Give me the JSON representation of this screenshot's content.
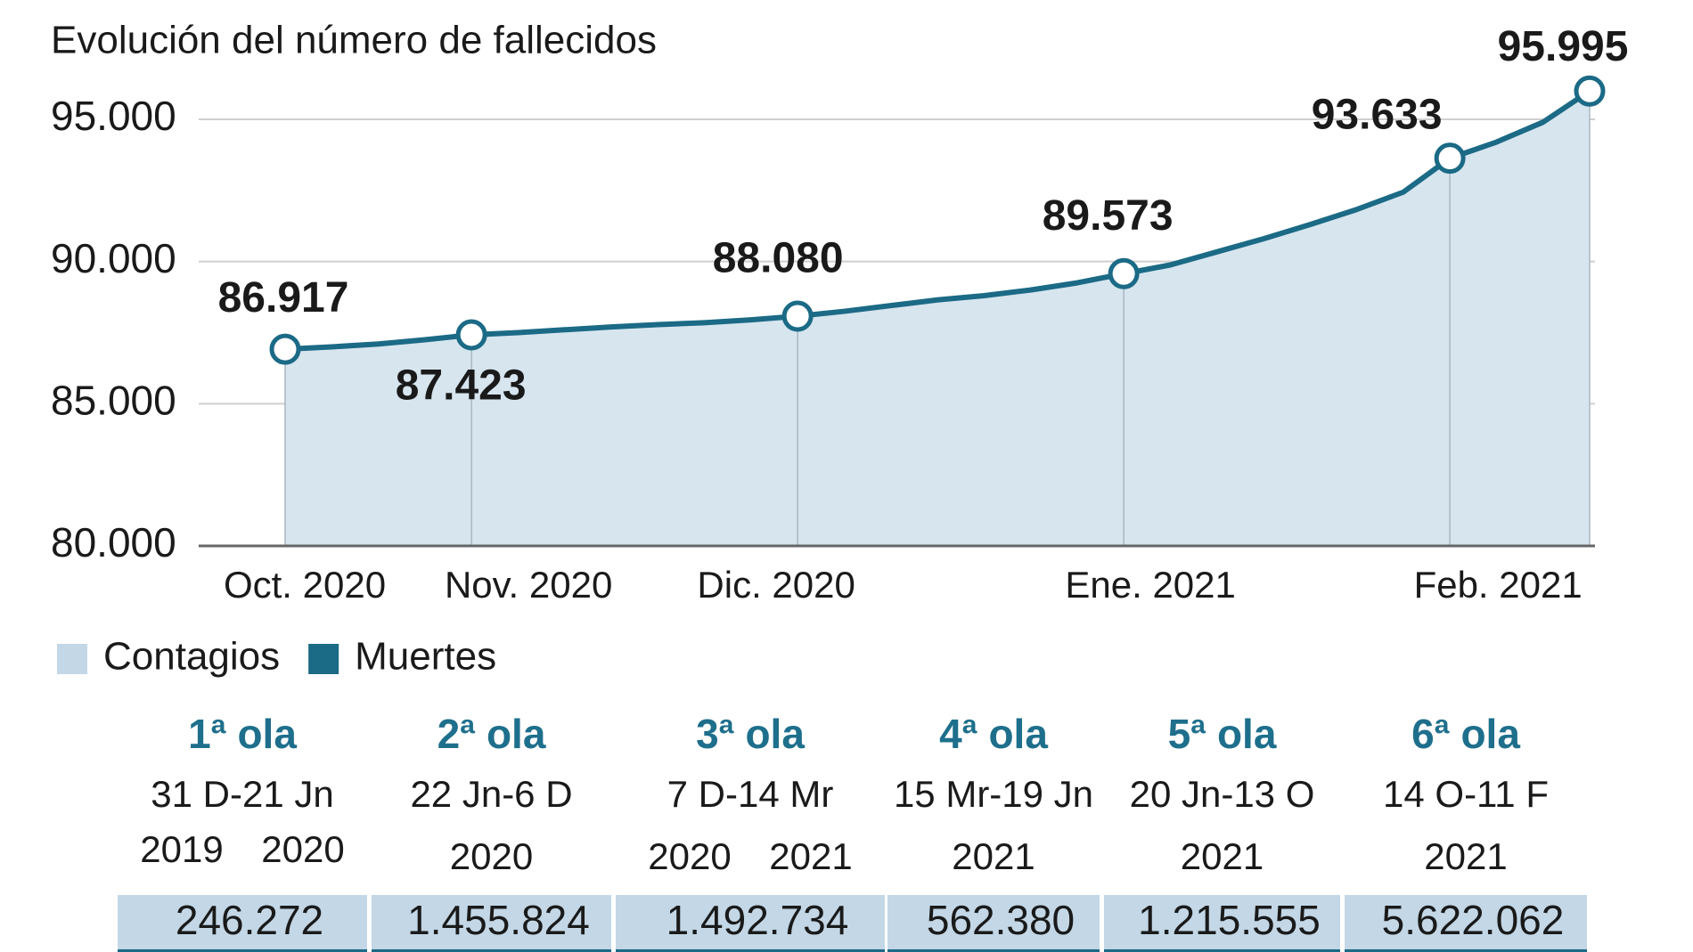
{
  "chart_data": {
    "type": "line",
    "subtitle": "Evolución del número de fallecidos",
    "categories": [
      "Oct. 2020",
      null,
      null,
      null,
      "Nov. 2020",
      null,
      null,
      null,
      null,
      null,
      null,
      "Dic. 2020",
      null,
      null,
      null,
      null,
      null,
      null,
      "Ene. 2021",
      null,
      null,
      null,
      null,
      null,
      null,
      "Feb. 2021",
      null,
      null,
      null
    ],
    "series": [
      {
        "name": "Muertes",
        "color": "#1b6a86",
        "values": [
          86917,
          87000,
          87100,
          87250,
          87423,
          87500,
          87600,
          87700,
          87780,
          87850,
          87950,
          88080,
          88250,
          88450,
          88650,
          88800,
          89000,
          89250,
          89573,
          89880,
          90340,
          90800,
          91300,
          91830,
          92440,
          93633,
          94200,
          94900,
          95995
        ],
        "value_labels": [
          "86.917",
          null,
          null,
          null,
          "87.423",
          null,
          null,
          null,
          null,
          null,
          null,
          "88.080",
          null,
          null,
          null,
          null,
          null,
          null,
          "89.573",
          null,
          null,
          null,
          null,
          null,
          null,
          "93.633",
          null,
          null,
          "95.995"
        ]
      }
    ],
    "area_color": "#d7e5ef",
    "ylim": [
      80000,
      95000
    ],
    "yticks": [
      {
        "value": 80000,
        "label": "80.000"
      },
      {
        "value": 85000,
        "label": "85.000"
      },
      {
        "value": 90000,
        "label": "90.000"
      },
      {
        "value": 95000,
        "label": "95.000"
      }
    ],
    "grid": true,
    "legend": [
      {
        "name": "Contagios",
        "color": "#c3d7e6"
      },
      {
        "name": "Muertes",
        "color": "#1b6a86"
      }
    ]
  },
  "table": {
    "columns": [
      {
        "wave": "1ª ola",
        "dates": "31 D-21 Jn",
        "years": [
          "2019",
          "2020"
        ],
        "contagios": "246.272"
      },
      {
        "wave": "2ª ola",
        "dates": "22 Jn-6 D",
        "years": [
          "2020"
        ],
        "contagios": "1.455.824"
      },
      {
        "wave": "3ª ola",
        "dates": "7 D-14 Mr",
        "years": [
          "2020",
          "2021"
        ],
        "contagios": "1.492.734"
      },
      {
        "wave": "4ª ola",
        "dates": "15 Mr-19 Jn",
        "years": [
          "2021"
        ],
        "contagios": "562.380"
      },
      {
        "wave": "5ª ola",
        "dates": "20 Jn-13 O",
        "years": [
          "2021"
        ],
        "contagios": "1.215.555"
      },
      {
        "wave": "6ª ola",
        "dates": "14 O-11 F",
        "years": [
          "2021"
        ],
        "contagios": "5.622.062"
      }
    ]
  }
}
